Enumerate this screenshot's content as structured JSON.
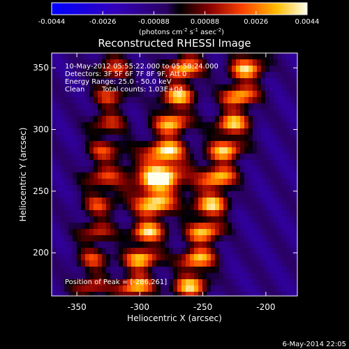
{
  "chart_data": {
    "type": "heatmap",
    "title": "Reconstructed RHESSI Image",
    "xlabel": "Heliocentric X (arcsec)",
    "ylabel": "Heliocentric Y (arcsec)",
    "xlim": [
      -370,
      -175
    ],
    "ylim": [
      165,
      362
    ],
    "x_ticks": [
      -350,
      -300,
      -250,
      -200
    ],
    "y_ticks": [
      200,
      250,
      300,
      350
    ],
    "colorbar": {
      "min": -0.0044,
      "max": 0.0044,
      "ticks": [
        "-0.0044",
        "-0.0026",
        "-0.00088",
        "0.00088",
        "0.0026",
        "0.0044"
      ],
      "unit_prefix": "(photons cm",
      "unit_exp1": "-2",
      "unit_mid1": " s",
      "unit_exp2": "-1",
      "unit_mid2": " asec",
      "unit_exp3": "-2",
      "unit_suffix": ")"
    },
    "annotations": {
      "line1": "10-May-2012 05:55:22.000 to 05:58:24.000",
      "line2": "Detectors: 3F 5F 6F 7F 8F 9F, Att 0",
      "line3": "Energy Range: 25.0 - 50.0 keV",
      "line4_a": "Clean",
      "line4_b": "Total counts: 1.03E+04",
      "peak_label": "Position of Peak = [-286,261]"
    },
    "peak": [
      -286,
      261
    ],
    "ridges": [
      {
        "x0": -305,
        "y0": 165,
        "x1": -262,
        "y1": 362
      },
      {
        "x0": -262,
        "y0": 165,
        "x1": -212,
        "y1": 362
      },
      {
        "x0": -340,
        "y0": 165,
        "x1": -320,
        "y1": 362
      }
    ],
    "grid": false
  },
  "footer": {
    "timestamp": "6-May-2014 22:05"
  }
}
